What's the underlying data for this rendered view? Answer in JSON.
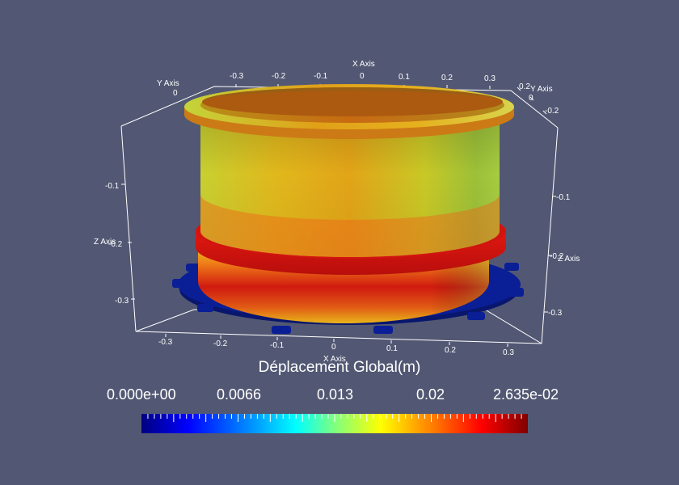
{
  "axes": {
    "x_title_top": "X Axis",
    "x_title_bottom": "X Axis",
    "y_title_left": "Y Axis",
    "y_title_right": "Y Axis",
    "z_title_left": "Z Axis",
    "z_title_right": "Z Axis",
    "x_ticks_top": [
      "-0.3",
      "-0.2",
      "-0.1",
      "0",
      "0.1",
      "0.2",
      "0.3"
    ],
    "x_ticks_bottom": [
      "-0.3",
      "-0.2",
      "-0.1",
      "0",
      "0.1",
      "0.2",
      "0.3"
    ],
    "y_tick_left": "0",
    "y_ticks_right": [
      "0.2",
      "0",
      "-0.2"
    ],
    "z_ticks_left": [
      "-0.1",
      "-0.2",
      "-0.3"
    ],
    "z_ticks_right": [
      "-0.1",
      "-0.2",
      "-0.3"
    ]
  },
  "colorbar": {
    "title": "Déplacement Global(m)",
    "labels": [
      "0.000e+00",
      "0.0066",
      "0.013",
      "0.02",
      "2.635e-02"
    ],
    "range": [
      0,
      0.02635
    ],
    "colormap": [
      "#00007f",
      "#0000ff",
      "#00a0ff",
      "#00ffff",
      "#7fff7f",
      "#ffff00",
      "#ff8000",
      "#ff0000",
      "#7f0000"
    ]
  },
  "colors": {
    "background": "#525873",
    "base_plate": "#0a1e96",
    "axes_lines": "#ffffff"
  }
}
